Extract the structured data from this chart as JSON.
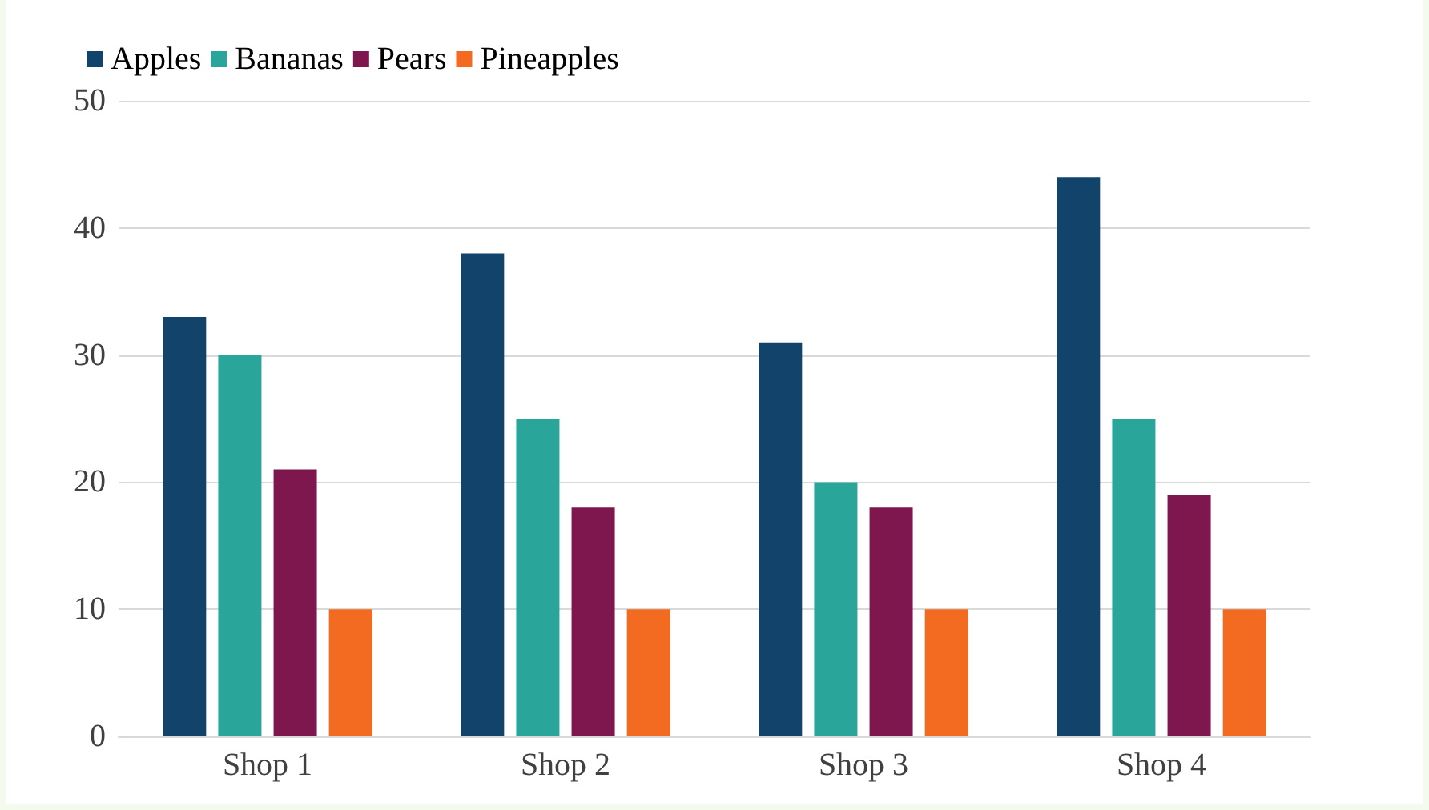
{
  "chart_data": {
    "type": "bar",
    "categories": [
      "Shop 1",
      "Shop 2",
      "Shop 3",
      "Shop 4"
    ],
    "series": [
      {
        "name": "Apples",
        "color": "#12436b",
        "values": [
          33,
          38,
          31,
          44
        ]
      },
      {
        "name": "Bananas",
        "color": "#2aa59a",
        "values": [
          30,
          25,
          20,
          25
        ]
      },
      {
        "name": "Pears",
        "color": "#7e174d",
        "values": [
          21,
          18,
          18,
          19
        ]
      },
      {
        "name": "Pineapples",
        "color": "#f26b21",
        "values": [
          10,
          10,
          10,
          10
        ]
      }
    ],
    "ylim": [
      0,
      50
    ],
    "yticks": [
      0,
      10,
      20,
      30,
      40,
      50
    ],
    "grid": "y",
    "legend": "top left"
  }
}
